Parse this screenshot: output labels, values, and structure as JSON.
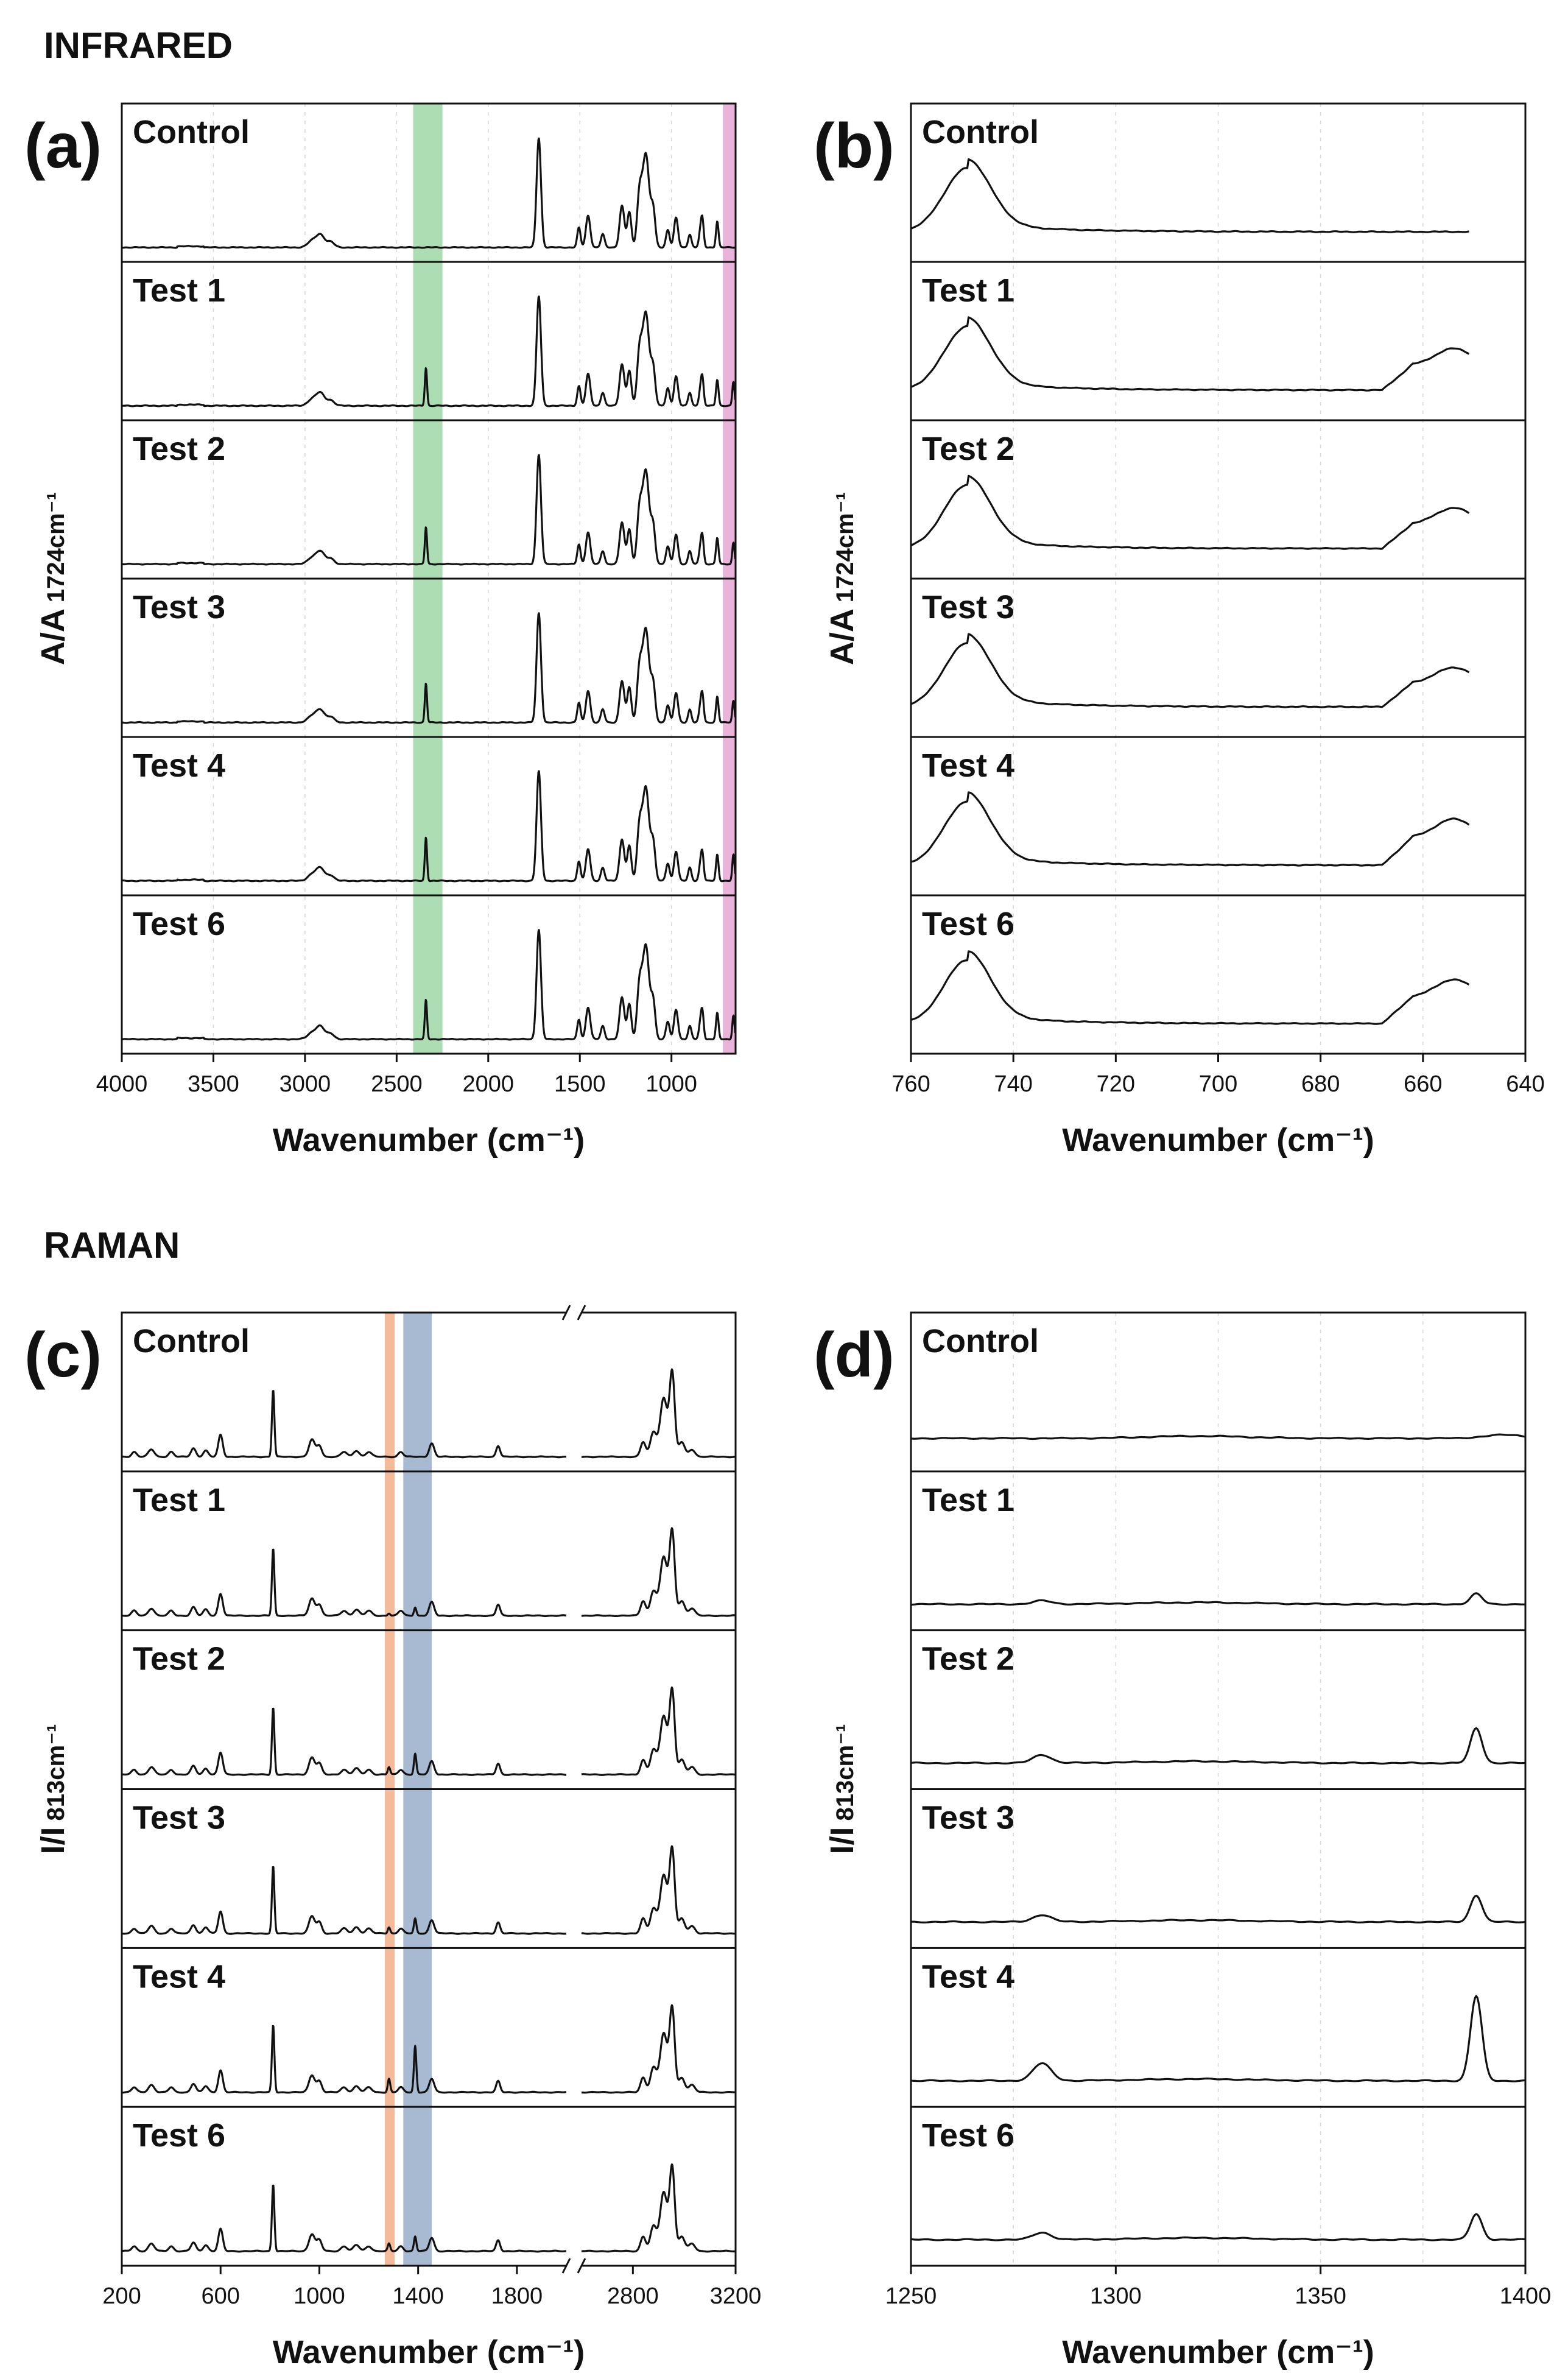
{
  "figure": {
    "section_infrared": "INFRARED",
    "section_raman": "RAMAN"
  },
  "chart_data": [
    {
      "panel": "(a)",
      "type": "line",
      "xlim": [
        4000,
        650
      ],
      "x_ticks": [
        "4000",
        "3500",
        "3000",
        "2500",
        "2000",
        "1500",
        "1000"
      ],
      "x_tick_values": [
        4000,
        3500,
        3000,
        2500,
        2000,
        1500,
        1000
      ],
      "xlabel": "Wavenumber (cm⁻¹)",
      "ylabel_main": "A/A",
      "ylabel_sub": "1724cm⁻¹",
      "stack_labels": [
        "Control",
        "Test 1",
        "Test 2",
        "Test 3",
        "Test 4",
        "Test 6"
      ],
      "highlight_bands": [
        {
          "from": 2410,
          "to": 2250,
          "color": "#9fd8a6"
        },
        {
          "from": 720,
          "to": 650,
          "color": "#e6a6d3"
        }
      ],
      "peaks": [
        {
          "x": 2960,
          "h": 0.06,
          "w": 25
        },
        {
          "x": 2915,
          "h": 0.11,
          "w": 22
        },
        {
          "x": 2860,
          "h": 0.05,
          "w": 20
        },
        {
          "x": 1724,
          "h": 1.0,
          "w": 12
        },
        {
          "x": 1505,
          "h": 0.18,
          "w": 9
        },
        {
          "x": 1455,
          "h": 0.29,
          "w": 12
        },
        {
          "x": 1375,
          "h": 0.12,
          "w": 10
        },
        {
          "x": 1270,
          "h": 0.38,
          "w": 13
        },
        {
          "x": 1230,
          "h": 0.32,
          "w": 11
        },
        {
          "x": 1175,
          "h": 0.45,
          "w": 13
        },
        {
          "x": 1140,
          "h": 0.85,
          "w": 18
        },
        {
          "x": 1100,
          "h": 0.33,
          "w": 12
        },
        {
          "x": 1020,
          "h": 0.16,
          "w": 10
        },
        {
          "x": 975,
          "h": 0.27,
          "w": 11
        },
        {
          "x": 900,
          "h": 0.12,
          "w": 9
        },
        {
          "x": 840,
          "h": 0.17,
          "w": 9
        },
        {
          "x": 830,
          "h": 0.18,
          "w": 7
        },
        {
          "x": 750,
          "h": 0.24,
          "w": 7
        }
      ],
      "variable_peaks": [
        {
          "x": 2340,
          "w": 6,
          "heights": [
            0,
            0.35,
            0.34,
            0.36,
            0.4,
            0.36
          ]
        },
        {
          "x": 662,
          "w": 6,
          "heights": [
            0,
            0.22,
            0.2,
            0.2,
            0.24,
            0.22
          ]
        }
      ]
    },
    {
      "panel": "(b)",
      "type": "line",
      "xlim": [
        760,
        640
      ],
      "x_ticks": [
        "760",
        "740",
        "720",
        "700",
        "680",
        "660",
        "640"
      ],
      "x_tick_values": [
        760,
        740,
        720,
        700,
        680,
        660,
        640
      ],
      "xlabel": "Wavenumber (cm⁻¹)",
      "ylabel_main": "A/A",
      "ylabel_sub": "1724cm⁻¹",
      "stack_labels": [
        "Control",
        "Test 1",
        "Test 2",
        "Test 3",
        "Test 4",
        "Test 6"
      ],
      "peak_main": {
        "x": 749,
        "h": 0.55,
        "w": 4.5
      },
      "shoulder_heights": [
        0,
        0.36,
        0.35,
        0.34,
        0.4,
        0.38
      ],
      "x_end": 651
    },
    {
      "panel": "(c)",
      "type": "line",
      "segment_left": [
        200,
        2000
      ],
      "segment_right": [
        2600,
        3200
      ],
      "x_ticks_left": [
        "200",
        "600",
        "1000",
        "1400",
        "1800"
      ],
      "x_tick_values_left": [
        200,
        600,
        1000,
        1400,
        1800
      ],
      "x_ticks_right": [
        "2800",
        "3200"
      ],
      "x_tick_values_right": [
        2800,
        3200
      ],
      "xlabel": "Wavenumber (cm⁻¹)",
      "ylabel_main": "I/I",
      "ylabel_sub": "813cm⁻¹",
      "stack_labels": [
        "Control",
        "Test 1",
        "Test 2",
        "Test 3",
        "Test 4",
        "Test 6"
      ],
      "highlight_bands": [
        {
          "from": 1265,
          "to": 1305,
          "color": "#f3b48f"
        },
        {
          "from": 1340,
          "to": 1455,
          "color": "#9fb2cc"
        }
      ],
      "peaks": [
        {
          "x": 250,
          "h": 0.04,
          "w": 10
        },
        {
          "x": 320,
          "h": 0.06,
          "w": 12
        },
        {
          "x": 400,
          "h": 0.04,
          "w": 10
        },
        {
          "x": 490,
          "h": 0.07,
          "w": 10
        },
        {
          "x": 540,
          "h": 0.05,
          "w": 10
        },
        {
          "x": 600,
          "h": 0.18,
          "w": 9
        },
        {
          "x": 813,
          "h": 0.55,
          "w": 5
        },
        {
          "x": 970,
          "h": 0.14,
          "w": 12
        },
        {
          "x": 1000,
          "h": 0.09,
          "w": 10
        },
        {
          "x": 1100,
          "h": 0.04,
          "w": 12
        },
        {
          "x": 1150,
          "h": 0.05,
          "w": 12
        },
        {
          "x": 1200,
          "h": 0.04,
          "w": 12
        },
        {
          "x": 1330,
          "h": 0.04,
          "w": 10
        },
        {
          "x": 1455,
          "h": 0.11,
          "w": 10
        },
        {
          "x": 1724,
          "h": 0.09,
          "w": 8
        },
        {
          "x": 2840,
          "h": 0.12,
          "w": 10
        },
        {
          "x": 2880,
          "h": 0.2,
          "w": 12
        },
        {
          "x": 2920,
          "h": 0.48,
          "w": 14
        },
        {
          "x": 2953,
          "h": 0.68,
          "w": 10
        },
        {
          "x": 2990,
          "h": 0.12,
          "w": 12
        },
        {
          "x": 3030,
          "h": 0.06,
          "w": 12
        }
      ],
      "variable_peaks": [
        {
          "x": 1282,
          "w": 5,
          "heights": [
            0,
            0.02,
            0.06,
            0.05,
            0.11,
            0.06
          ]
        },
        {
          "x": 1388,
          "w": 5,
          "heights": [
            0,
            0.07,
            0.17,
            0.12,
            0.38,
            0.12
          ]
        }
      ]
    },
    {
      "panel": "(d)",
      "type": "line",
      "xlim": [
        1250,
        1400
      ],
      "x_ticks": [
        "1250",
        "1300",
        "1350",
        "1400"
      ],
      "x_tick_values": [
        1250,
        1300,
        1350,
        1400
      ],
      "xlabel": "Wavenumber (cm⁻¹)",
      "ylabel_main": "I/I",
      "ylabel_sub": "813cm⁻¹",
      "stack_labels": [
        "Control",
        "Test 1",
        "Test 2",
        "Test 3",
        "Test 4",
        "Test 6"
      ],
      "peak_1282_heights": [
        0,
        0.03,
        0.07,
        0.06,
        0.15,
        0.06
      ],
      "peak_1388_heights": [
        0,
        0.09,
        0.3,
        0.23,
        0.73,
        0.22
      ]
    }
  ]
}
